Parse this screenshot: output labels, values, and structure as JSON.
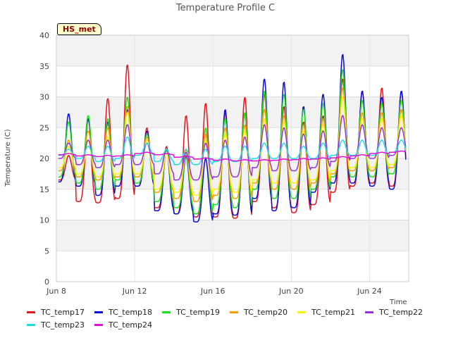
{
  "chart_data": {
    "type": "line",
    "title": "Temperature Profile C",
    "xlabel": "Time",
    "ylabel": "Temperature (C)",
    "badge": "HS_met",
    "ylim": [
      0,
      40
    ],
    "yticks": [
      0,
      5,
      10,
      15,
      20,
      25,
      30,
      35,
      40
    ],
    "xlim": [
      "2024-06-08",
      "2024-06-26"
    ],
    "xticks": [
      {
        "date": "2024-06-08",
        "label": "Jun 8"
      },
      {
        "date": "2024-06-12",
        "label": "Jun 12"
      },
      {
        "date": "2024-06-16",
        "label": "Jun 16"
      },
      {
        "date": "2024-06-20",
        "label": "Jun 20"
      },
      {
        "date": "2024-06-24",
        "label": "Jun 24"
      }
    ],
    "x_dates": [
      "2024-06-08 12:00",
      "2024-06-09 12:00",
      "2024-06-10 12:00",
      "2024-06-11 12:00",
      "2024-06-12 12:00",
      "2024-06-13 12:00",
      "2024-06-14 12:00",
      "2024-06-15 12:00",
      "2024-06-16 12:00",
      "2024-06-17 12:00",
      "2024-06-18 12:00",
      "2024-06-19 12:00",
      "2024-06-20 12:00",
      "2024-06-21 12:00",
      "2024-06-22 12:00",
      "2024-06-23 12:00",
      "2024-06-24 12:00",
      "2024-06-25 12:00"
    ],
    "grid": true,
    "legend_position": "bottom",
    "series": [
      {
        "name": "TC_temp17",
        "color": "#e8141d",
        "daily_max": [
          20.5,
          26.5,
          29.8,
          35.3,
          25.0,
          22.0,
          27.0,
          29.0,
          27.5,
          30.0,
          30.5,
          28.5,
          26.0,
          27.0,
          33.0,
          31.0,
          31.5,
          31.0
        ],
        "daily_min": [
          16.5,
          13.0,
          12.8,
          13.5,
          15.5,
          12.0,
          11.0,
          10.5,
          10.5,
          10.3,
          13.0,
          12.0,
          11.2,
          12.5,
          14.5,
          15.5,
          16.0,
          15.5
        ]
      },
      {
        "name": "TC_temp18",
        "color": "#0a0adc",
        "daily_max": [
          27.3,
          26.5,
          26.0,
          28.0,
          24.5,
          21.5,
          20.5,
          20.0,
          28.0,
          27.5,
          33.0,
          32.5,
          28.5,
          30.5,
          37.0,
          31.0,
          30.0,
          31.0
        ],
        "daily_min": [
          16.2,
          15.5,
          14.0,
          15.5,
          15.5,
          11.5,
          11.0,
          9.7,
          11.0,
          10.8,
          13.5,
          11.5,
          12.0,
          14.5,
          16.0,
          16.0,
          15.5,
          15.0
        ]
      },
      {
        "name": "TC_temp19",
        "color": "#17e317",
        "daily_max": [
          26.0,
          27.0,
          26.5,
          30.0,
          24.0,
          21.5,
          21.0,
          25.0,
          26.5,
          27.5,
          31.0,
          30.5,
          28.0,
          29.0,
          34.5,
          29.5,
          29.0,
          29.5
        ],
        "daily_min": [
          17.0,
          16.0,
          15.0,
          16.5,
          16.0,
          13.0,
          12.0,
          11.0,
          12.5,
          12.0,
          15.0,
          13.5,
          13.5,
          15.0,
          17.0,
          17.0,
          17.0,
          17.5
        ]
      },
      {
        "name": "TC_temp20",
        "color": "#ff9a00",
        "daily_max": [
          23.0,
          24.5,
          25.0,
          28.5,
          23.5,
          21.0,
          21.5,
          24.0,
          25.0,
          25.5,
          28.0,
          27.0,
          25.5,
          26.5,
          31.5,
          27.5,
          27.5,
          28.0
        ],
        "daily_min": [
          18.0,
          17.0,
          16.5,
          17.0,
          17.0,
          14.5,
          13.5,
          13.0,
          14.0,
          13.5,
          16.0,
          15.0,
          15.0,
          16.0,
          17.5,
          18.0,
          18.0,
          18.5
        ]
      },
      {
        "name": "TC_temp21",
        "color": "#f5f50a",
        "daily_max": [
          22.0,
          23.0,
          23.5,
          27.5,
          23.0,
          21.0,
          21.0,
          23.0,
          24.0,
          24.5,
          26.5,
          26.0,
          24.5,
          25.5,
          30.0,
          26.5,
          26.5,
          27.0
        ],
        "daily_min": [
          18.5,
          17.5,
          17.0,
          17.5,
          17.5,
          15.0,
          14.5,
          14.0,
          15.0,
          14.5,
          16.5,
          16.0,
          16.0,
          16.5,
          18.0,
          18.5,
          18.5,
          19.0
        ]
      },
      {
        "name": "TC_temp22",
        "color": "#9b30e0",
        "daily_max": [
          22.5,
          23.0,
          23.0,
          25.5,
          22.5,
          21.5,
          21.0,
          22.5,
          23.0,
          23.5,
          25.5,
          25.0,
          24.0,
          24.5,
          27.0,
          25.5,
          25.0,
          25.0
        ],
        "daily_min": [
          20.0,
          19.0,
          18.5,
          19.0,
          19.0,
          17.5,
          16.5,
          16.5,
          17.0,
          17.0,
          18.5,
          18.0,
          18.0,
          18.5,
          19.5,
          20.0,
          20.0,
          20.5
        ]
      },
      {
        "name": "TC_temp23",
        "color": "#19e1e1",
        "daily_max": [
          21.5,
          22.0,
          22.0,
          23.5,
          22.5,
          21.5,
          21.5,
          21.5,
          22.0,
          22.0,
          22.5,
          22.5,
          22.0,
          22.5,
          23.0,
          23.0,
          23.0,
          23.0
        ],
        "daily_min": [
          20.5,
          20.0,
          19.5,
          20.0,
          20.5,
          19.5,
          19.0,
          19.0,
          19.5,
          19.5,
          20.0,
          20.0,
          20.0,
          20.0,
          20.5,
          20.5,
          20.5,
          21.0
        ]
      },
      {
        "name": "TC_temp24",
        "color": "#e010d8",
        "daily_max": [
          20.8,
          20.6,
          20.5,
          20.6,
          21.0,
          20.8,
          20.4,
          20.1,
          19.9,
          19.8,
          19.8,
          19.9,
          20.0,
          20.1,
          20.3,
          20.6,
          21.0,
          21.2
        ],
        "daily_min": [
          20.6,
          20.4,
          20.3,
          20.4,
          20.8,
          20.6,
          20.2,
          19.9,
          19.7,
          19.6,
          19.6,
          19.7,
          19.8,
          19.9,
          20.1,
          20.4,
          20.8,
          21.0
        ]
      }
    ]
  }
}
